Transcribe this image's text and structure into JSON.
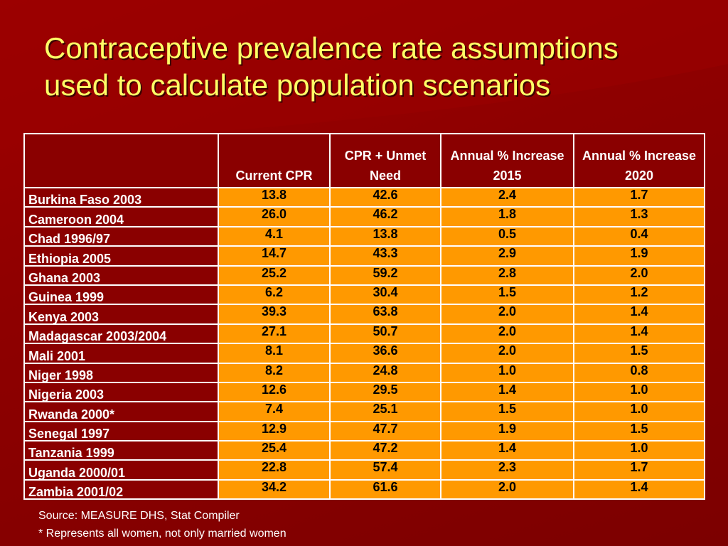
{
  "slide": {
    "title_lines": [
      "Contraceptive prevalence rate assumptions",
      "used to calculate population scenarios"
    ],
    "colors": {
      "background": "#8a0000",
      "title": "#ffff66",
      "cell_fill": "#ff9900",
      "text_white": "#ffffff"
    }
  },
  "table": {
    "headers": [
      "",
      "Current CPR",
      "CPR + Unmet Need",
      "Annual % Increase 2015",
      "Annual % Increase 2020"
    ],
    "rows": [
      [
        "Burkina Faso 2003",
        "13.8",
        "42.6",
        "2.4",
        "1.7"
      ],
      [
        "Cameroon 2004",
        "26.0",
        "46.2",
        "1.8",
        "1.3"
      ],
      [
        "Chad 1996/97",
        "4.1",
        "13.8",
        "0.5",
        "0.4"
      ],
      [
        "Ethiopia 2005",
        "14.7",
        "43.3",
        "2.9",
        "1.9"
      ],
      [
        "Ghana 2003",
        "25.2",
        "59.2",
        "2.8",
        "2.0"
      ],
      [
        "Guinea  1999",
        "6.2",
        "30.4",
        "1.5",
        "1.2"
      ],
      [
        "Kenya 2003",
        "39.3",
        "63.8",
        "2.0",
        "1.4"
      ],
      [
        "Madagascar 2003/2004",
        "27.1",
        "50.7",
        "2.0",
        "1.4"
      ],
      [
        "Mali 2001",
        "8.1",
        "36.6",
        "2.0",
        "1.5"
      ],
      [
        "Niger 1998",
        "8.2",
        "24.8",
        "1.0",
        "0.8"
      ],
      [
        "Nigeria 2003",
        "12.6",
        "29.5",
        "1.4",
        "1.0"
      ],
      [
        "Rwanda 2000*",
        "7.4",
        "25.1",
        "1.5",
        "1.0"
      ],
      [
        "Senegal 1997",
        "12.9",
        "47.7",
        "1.9",
        "1.5"
      ],
      [
        "Tanzania 1999",
        "25.4",
        "47.2",
        "1.4",
        "1.0"
      ],
      [
        "Uganda 2000/01",
        "22.8",
        "57.4",
        "2.3",
        "1.7"
      ],
      [
        "Zambia 2001/02",
        "34.2",
        "61.6",
        "2.0",
        "1.4"
      ]
    ]
  },
  "footer": {
    "source": "Source: MEASURE DHS, Stat Compiler",
    "note": "* Represents all women, not only married women"
  }
}
